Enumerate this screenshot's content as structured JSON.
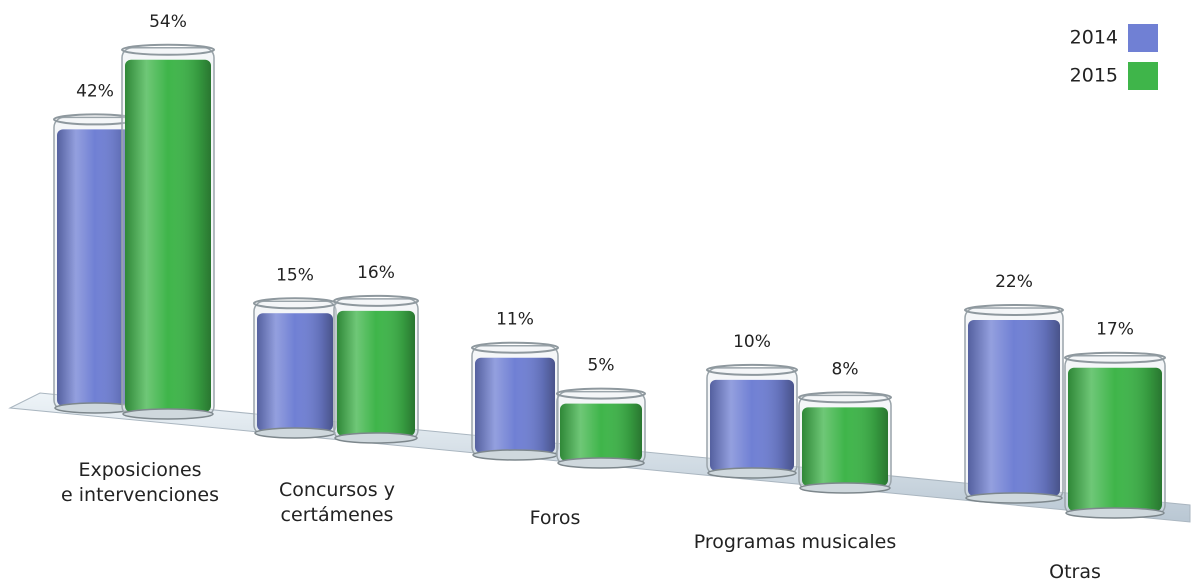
{
  "chart_data": {
    "type": "bar",
    "categories": [
      "Exposiciones\ne intervenciones",
      "Concursos y\ncertámenes",
      "Foros",
      "Programas musicales",
      "Otras actividades"
    ],
    "series": [
      {
        "name": "2014",
        "color": "#7080d4",
        "values": [
          42,
          15,
          11,
          10,
          22
        ],
        "value_labels": [
          "42%",
          "15%",
          "11%",
          "10%",
          "22%"
        ]
      },
      {
        "name": "2015",
        "color": "#3fb54a",
        "values": [
          54,
          16,
          5,
          8,
          17
        ],
        "value_labels": [
          "54%",
          "16%",
          "5%",
          "8%",
          "17%"
        ]
      }
    ],
    "legend": "top-right"
  }
}
